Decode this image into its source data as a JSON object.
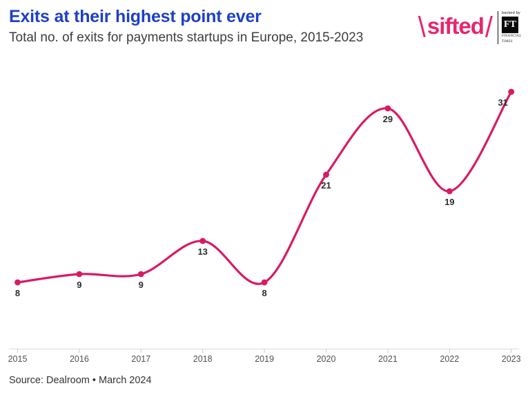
{
  "header": {
    "title": "Exits at their highest point ever",
    "subtitle": "Total no. of exits for payments startups in Europe, 2015-2023"
  },
  "logo": {
    "backslash": "\\",
    "wordmark": "sifted",
    "slash": "/",
    "backed_by": "backed by",
    "ft_initials": "FT",
    "ft_name_line1": "FINANCIAL",
    "ft_name_line2": "TIMES"
  },
  "colors": {
    "title_blue": "#1d3fc9",
    "brand_pink": "#e8256d",
    "line_pink": "#d91a63",
    "data_label": "#2d2d2d",
    "axis_line": "#dcdcdc",
    "tick": "#c9c9c9",
    "tick_label": "#4f4f4f"
  },
  "chart_data": {
    "type": "line",
    "title": "Exits at their highest point ever",
    "subtitle": "Total no. of exits for payments startups in Europe, 2015-2023",
    "x": [
      "2015",
      "2016",
      "2017",
      "2018",
      "2019",
      "2020",
      "2021",
      "2022",
      "2023"
    ],
    "values": [
      8,
      9,
      9,
      13,
      8,
      21,
      29,
      19,
      31
    ],
    "xlabel": "",
    "ylabel": "",
    "ylim": [
      0,
      33
    ],
    "grid": false,
    "legend": false,
    "smooth": true,
    "point_labels_visible": true
  },
  "source": "Source: Dealroom • March 2024"
}
